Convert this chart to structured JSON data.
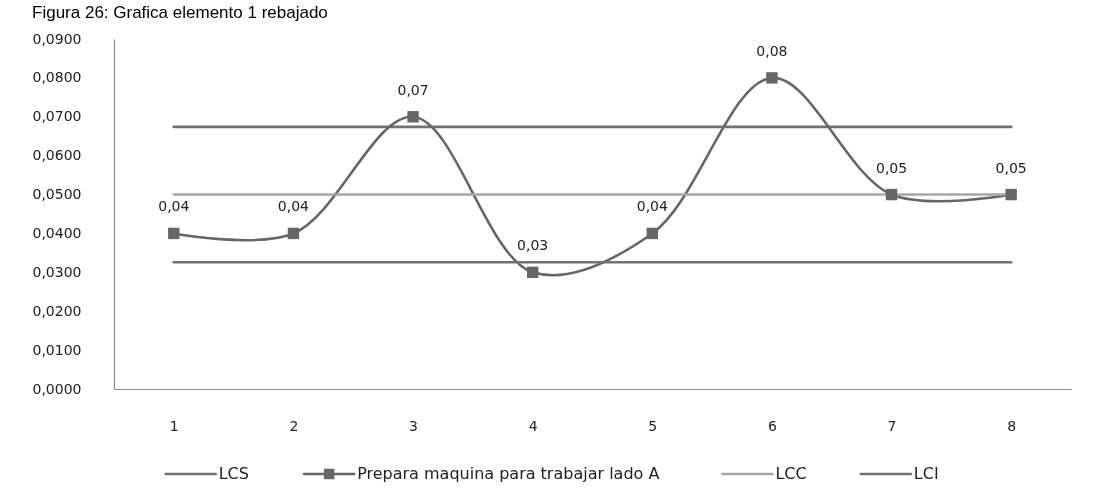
{
  "chart_data": {
    "type": "line",
    "title": "Figura 26: Grafica elemento 1 rebajado",
    "categories": [
      "1",
      "2",
      "3",
      "4",
      "5",
      "6",
      "7",
      "8"
    ],
    "series": [
      {
        "name": "LCS",
        "color": "#717171",
        "values": [
          0.0674,
          0.0674,
          0.0674,
          0.0674,
          0.0674,
          0.0674,
          0.0674,
          0.0674
        ]
      },
      {
        "name": "Prepara maquina para trabajar lado A",
        "color": "#666666",
        "marker": "square",
        "values": [
          0.04,
          0.04,
          0.07,
          0.03,
          0.04,
          0.08,
          0.05,
          0.05
        ],
        "value_labels": [
          "0,04",
          "0,04",
          "0,07",
          "0,03",
          "0,04",
          "0,08",
          "0,05",
          "0,05"
        ]
      },
      {
        "name": "LCC",
        "color": "#a6a6a6",
        "values": [
          0.05,
          0.05,
          0.05,
          0.05,
          0.05,
          0.05,
          0.05,
          0.05
        ]
      },
      {
        "name": "LCI",
        "color": "#717171",
        "values": [
          0.0326,
          0.0326,
          0.0326,
          0.0326,
          0.0326,
          0.0326,
          0.0326,
          0.0326
        ]
      }
    ],
    "ylim": [
      0,
      0.09
    ],
    "yticks": [
      {
        "value": 0,
        "label": "0,0000"
      },
      {
        "value": 0.01,
        "label": "0,0100"
      },
      {
        "value": 0.02,
        "label": "0,0200"
      },
      {
        "value": 0.03,
        "label": "0,0300"
      },
      {
        "value": 0.04,
        "label": "0,0400"
      },
      {
        "value": 0.05,
        "label": "0,0500"
      },
      {
        "value": 0.06,
        "label": "0,0600"
      },
      {
        "value": 0.07,
        "label": "0,0700"
      },
      {
        "value": 0.08,
        "label": "0,0800"
      },
      {
        "value": 0.09,
        "label": "0,0900"
      }
    ],
    "grid": false,
    "legend": "bottom"
  }
}
